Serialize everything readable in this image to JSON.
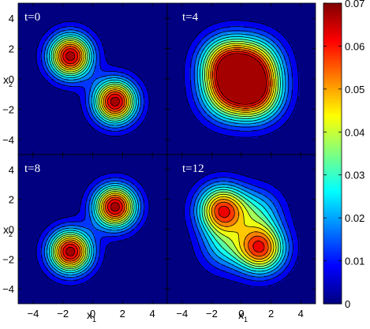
{
  "chart_data": {
    "type": "contour",
    "panels": [
      {
        "title": "t=0",
        "peaks": [
          {
            "x": -1.5,
            "y": 1.5,
            "amp": 0.068
          },
          {
            "x": 1.5,
            "y": -1.5,
            "amp": 0.068
          }
        ],
        "spread": 1.0
      },
      {
        "title": "t=4",
        "peaks": [
          {
            "x": -1.0,
            "y": 1.0,
            "amp": 0.052
          },
          {
            "x": 1.0,
            "y": -1.0,
            "amp": 0.052
          },
          {
            "x": -1.0,
            "y": -1.0,
            "amp": 0.04
          },
          {
            "x": 1.0,
            "y": 1.0,
            "amp": 0.04
          }
        ],
        "spread": 1.25
      },
      {
        "title": "t=8",
        "peaks": [
          {
            "x": -1.5,
            "y": -1.5,
            "amp": 0.068
          },
          {
            "x": 1.5,
            "y": 1.5,
            "amp": 0.068
          }
        ],
        "spread": 1.0
      },
      {
        "title": "t=12",
        "peaks": [
          {
            "x": -1.3,
            "y": 1.3,
            "amp": 0.058
          },
          {
            "x": 1.3,
            "y": -1.3,
            "amp": 0.058
          },
          {
            "x": -1.2,
            "y": -1.2,
            "amp": 0.02
          },
          {
            "x": 1.2,
            "y": 1.2,
            "amp": 0.02
          }
        ],
        "spread": 1.15
      }
    ],
    "xlabel": "x",
    "xlabel_sub": "1",
    "ylabel": "x",
    "ylabel_sub": "2",
    "xlim": [
      -5,
      5
    ],
    "ylim": [
      -5,
      5
    ],
    "xticks": [
      "−4",
      "−2",
      "0",
      "2",
      "4"
    ],
    "xtick_values": [
      -4,
      -2,
      0,
      2,
      4
    ],
    "yticks": [
      "4",
      "2",
      "0",
      "−2",
      "−4"
    ],
    "ytick_values": [
      4,
      2,
      0,
      -2,
      -4
    ],
    "contour_levels": [
      0.005,
      0.01,
      0.015,
      0.02,
      0.025,
      0.03,
      0.035,
      0.04,
      0.045,
      0.05,
      0.055,
      0.06,
      0.065
    ],
    "colorbar": {
      "colormap": "jet",
      "range": [
        0,
        0.07
      ],
      "ticks": [
        "0.07",
        "0.06",
        "0.05",
        "0.04",
        "0.03",
        "0.02",
        "0.01",
        "0"
      ],
      "tick_values": [
        0.07,
        0.06,
        0.05,
        0.04,
        0.03,
        0.02,
        0.01,
        0
      ]
    }
  }
}
